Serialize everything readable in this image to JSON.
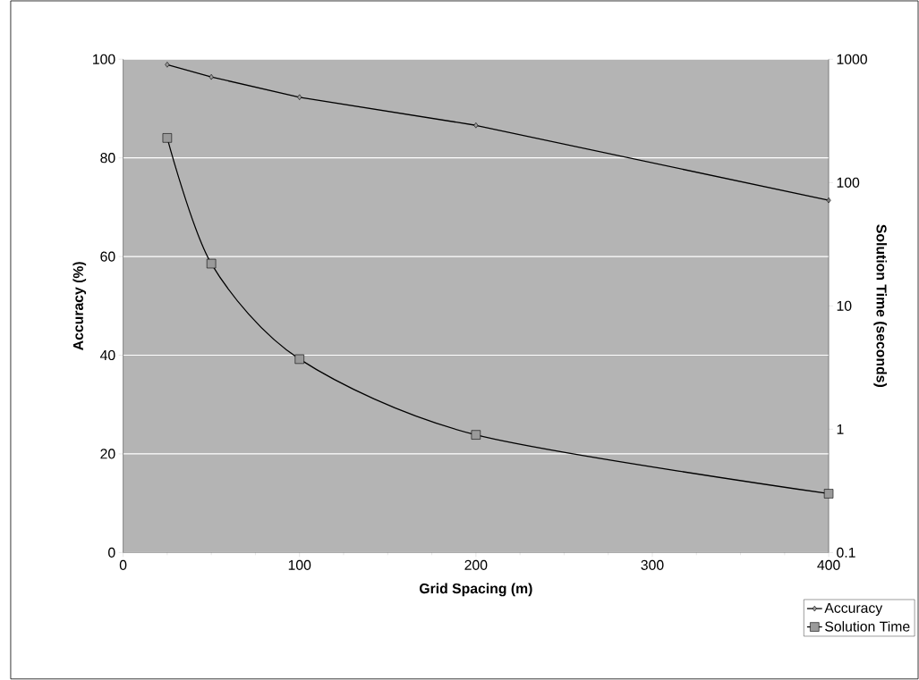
{
  "chart_data": {
    "type": "line",
    "xlabel": "Grid Spacing (m)",
    "ylabel": "Accuracy (%)",
    "y2label": "Solution Time (seconds)",
    "x": [
      25,
      50,
      100,
      200,
      400
    ],
    "series": [
      {
        "name": "Accuracy",
        "color": "#000000",
        "marker": "diamond",
        "values": [
          98.9,
          96.4,
          92.3,
          86.6,
          71.4
        ]
      },
      {
        "name": "Solution Time",
        "color": "#000000",
        "marker": "square",
        "axis": "y2",
        "values": [
          230,
          22,
          3.7,
          0.9,
          0.3
        ]
      }
    ],
    "xlim": [
      0,
      400
    ],
    "xticks": [
      0,
      100,
      200,
      300,
      400
    ],
    "ylim": [
      0,
      100
    ],
    "yticks": [
      0,
      20,
      40,
      60,
      80,
      100
    ],
    "y2lim": [
      0.1,
      1000
    ],
    "y2ticks": [
      0.1,
      1,
      10,
      100,
      1000
    ],
    "log": "y2",
    "grid": "y",
    "legend": "bottom right",
    "line_style": "solid"
  }
}
